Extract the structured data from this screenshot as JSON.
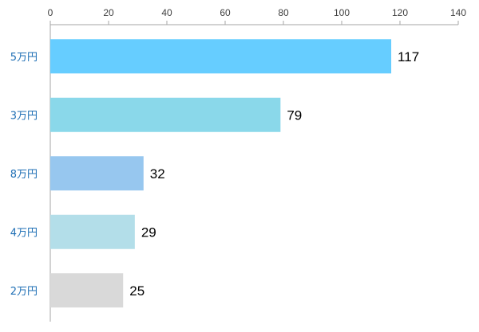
{
  "chart_data": {
    "type": "bar",
    "orientation": "horizontal",
    "categories": [
      "5万円",
      "3万円",
      "8万円",
      "4万円",
      "2万円"
    ],
    "values": [
      117,
      79,
      32,
      29,
      25
    ],
    "bar_colors": [
      "#66cdff",
      "#8ad8ea",
      "#97c7ef",
      "#b3dee9",
      "#d9d9d9"
    ],
    "xlim": [
      0,
      140
    ],
    "x_ticks": [
      0,
      20,
      40,
      60,
      80,
      100,
      120,
      140
    ],
    "x_axis_position": "top",
    "title": "",
    "xlabel": "",
    "ylabel": "",
    "grid": false,
    "legend": "none",
    "data_labels": true,
    "category_label_color": "#1f6fb5"
  }
}
